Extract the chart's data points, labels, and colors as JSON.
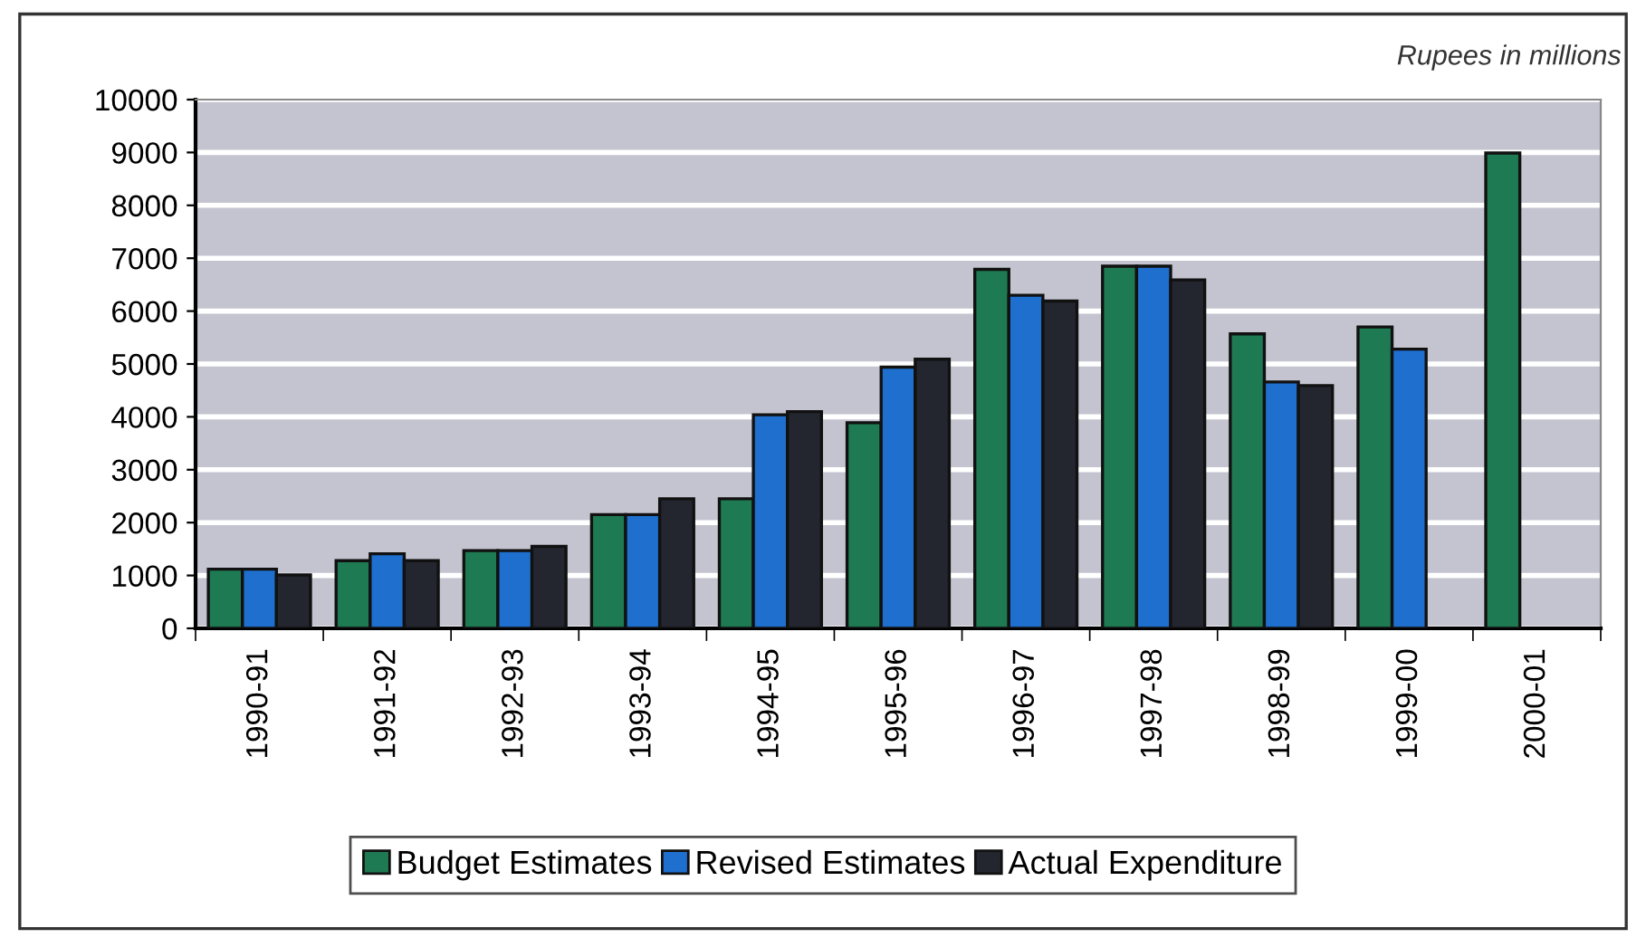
{
  "chart_data": {
    "type": "bar",
    "annotations": [
      "Rupees in millions"
    ],
    "categories": [
      "1990-91",
      "1991-92",
      "1992-93",
      "1993-94",
      "1994-95",
      "1995-96",
      "1996-97",
      "1997-98",
      "1998-99",
      "1999-00",
      "2000-01"
    ],
    "series": [
      {
        "name": "Budget Estimates",
        "color": "#1e7a52",
        "values": [
          1120,
          1280,
          1470,
          2150,
          2450,
          3890,
          6790,
          6850,
          5570,
          5700,
          8990
        ]
      },
      {
        "name": "Revised Estimates",
        "color": "#1f6fcf",
        "values": [
          1120,
          1410,
          1470,
          2150,
          4040,
          4940,
          6300,
          6850,
          4660,
          5280,
          null
        ]
      },
      {
        "name": "Actual Expenditure",
        "color": "#23262f",
        "values": [
          1010,
          1280,
          1550,
          2450,
          4100,
          5090,
          6190,
          6590,
          4590,
          null,
          null
        ]
      }
    ],
    "ylim": [
      0,
      10000
    ],
    "yticks": [
      0,
      1000,
      2000,
      3000,
      4000,
      5000,
      6000,
      7000,
      8000,
      9000,
      10000
    ],
    "grid": "y",
    "legend": "bottom"
  }
}
